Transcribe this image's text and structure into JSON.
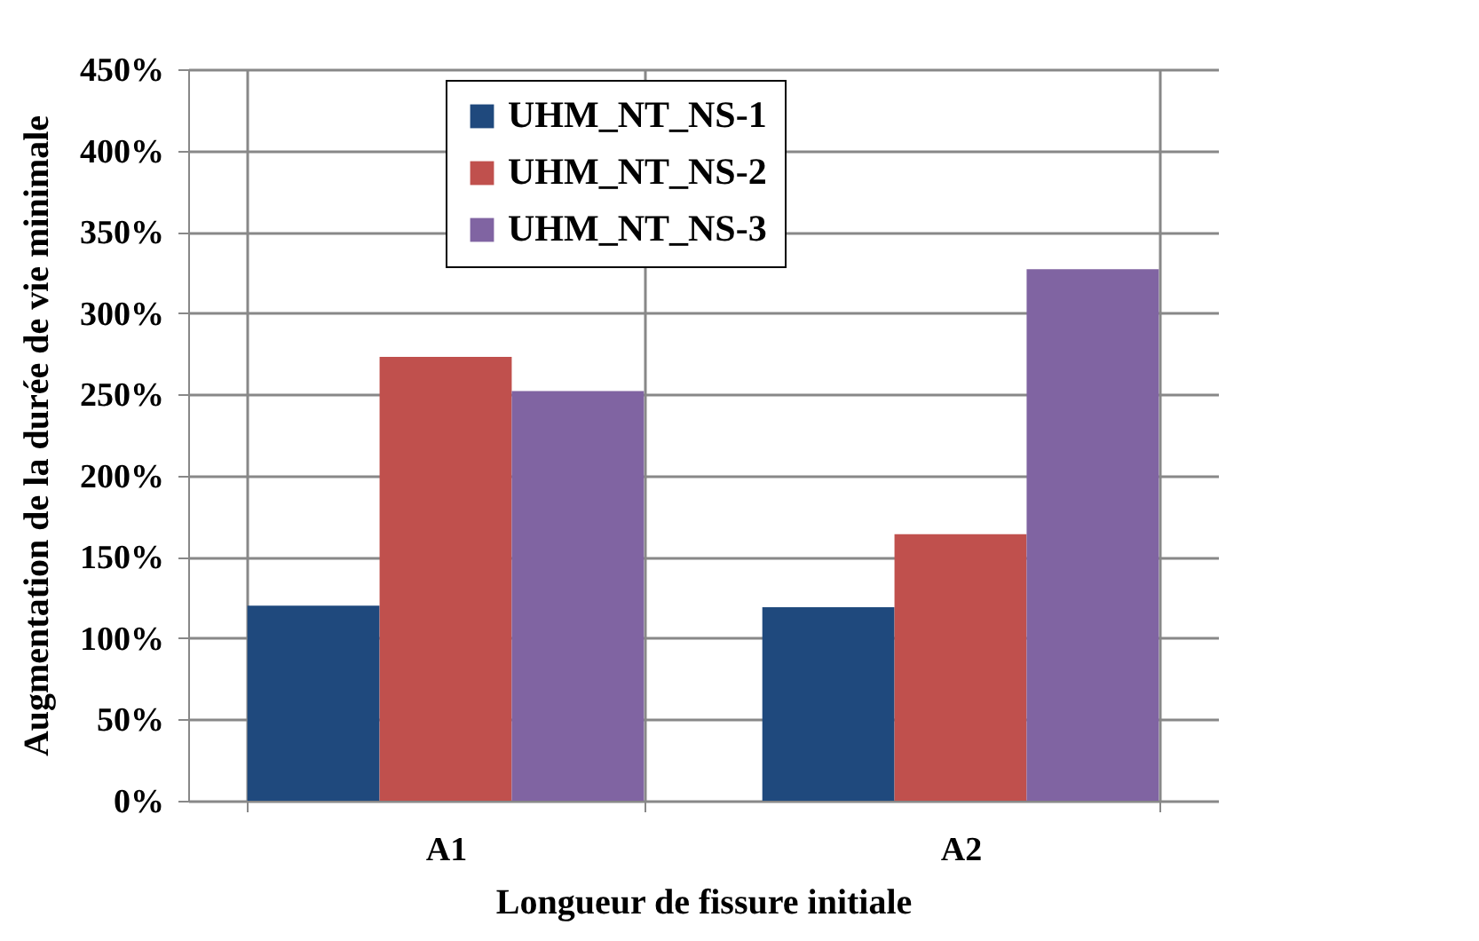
{
  "chart_data": {
    "type": "bar",
    "xlabel": "Longueur de fissure initiale",
    "ylabel": "Augmentation de la durée de vie minimale",
    "categories": [
      "A1",
      "A2"
    ],
    "series": [
      {
        "name": "UHM_NT_NS-1",
        "color": "#1f497d",
        "values": [
          120,
          119
        ]
      },
      {
        "name": "UHM_NT_NS-2",
        "color": "#c0504d",
        "values": [
          273,
          164
        ]
      },
      {
        "name": "UHM_NT_NS-3",
        "color": "#8064a2",
        "values": [
          252,
          327
        ]
      }
    ],
    "ylim": [
      0,
      450
    ],
    "yticks": [
      {
        "value": 0,
        "label": "0%"
      },
      {
        "value": 50,
        "label": "50%"
      },
      {
        "value": 100,
        "label": "100%"
      },
      {
        "value": 150,
        "label": "150%"
      },
      {
        "value": 200,
        "label": "200%"
      },
      {
        "value": 250,
        "label": "250%"
      },
      {
        "value": 300,
        "label": "300%"
      },
      {
        "value": 350,
        "label": "350%"
      },
      {
        "value": 400,
        "label": "400%"
      },
      {
        "value": 450,
        "label": "450%"
      }
    ],
    "grid": true,
    "legend": "top"
  }
}
